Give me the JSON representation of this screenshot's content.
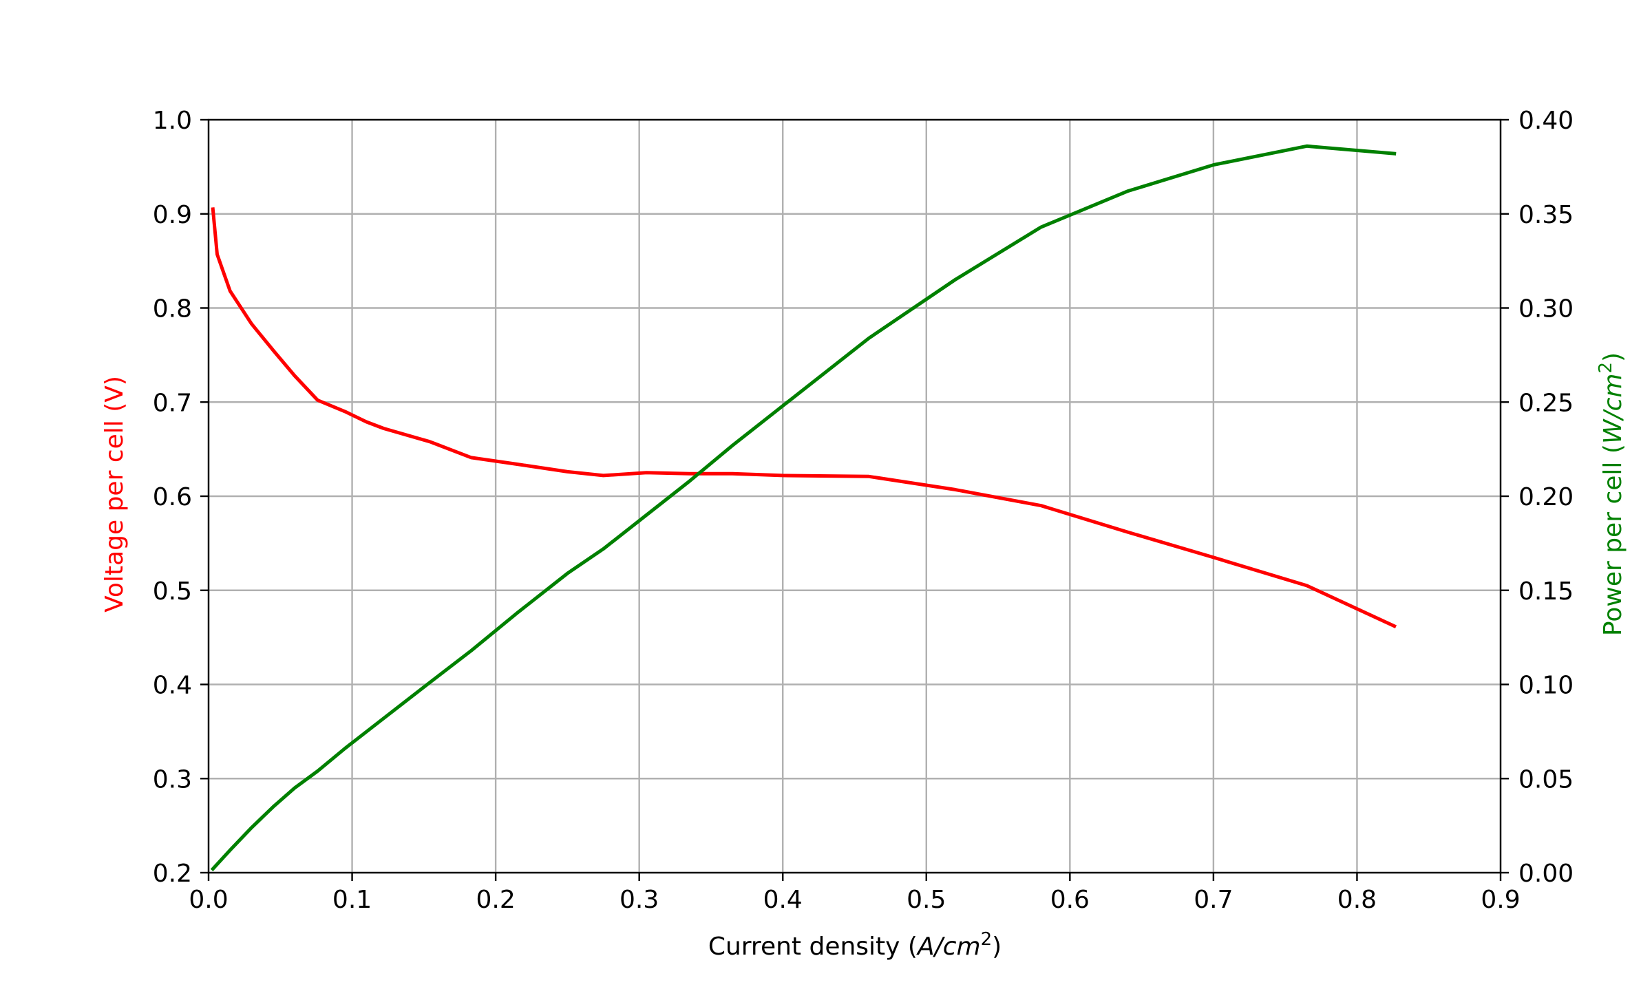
{
  "chart_data": {
    "type": "line",
    "x_axis": {
      "label_text": "Current density (",
      "label_math": "A/cm",
      "label_sup": "2",
      "label_close": ")",
      "range": [
        0.0,
        0.9
      ],
      "ticks": [
        "0.0",
        "0.1",
        "0.2",
        "0.3",
        "0.4",
        "0.5",
        "0.6",
        "0.7",
        "0.8",
        "0.9"
      ]
    },
    "y_axis_left": {
      "label": "Voltage per cell (V)",
      "color": "#ff0000",
      "range": [
        0.2,
        1.0
      ],
      "ticks": [
        "0.2",
        "0.3",
        "0.4",
        "0.5",
        "0.6",
        "0.7",
        "0.8",
        "0.9",
        "1.0"
      ]
    },
    "y_axis_right": {
      "label_text": "Power per cell (",
      "label_math": "W/cm",
      "label_sup": "2",
      "label_close": ")",
      "color": "#008000",
      "range": [
        0.0,
        0.4
      ],
      "ticks": [
        "0.00",
        "0.05",
        "0.10",
        "0.15",
        "0.20",
        "0.25",
        "0.30",
        "0.35",
        "0.40"
      ]
    },
    "grid": true,
    "series": [
      {
        "axis": "left",
        "color": "#ff0000",
        "x": [
          0.003,
          0.006,
          0.015,
          0.03,
          0.045,
          0.06,
          0.076,
          0.095,
          0.11,
          0.122,
          0.154,
          0.183,
          0.215,
          0.25,
          0.275,
          0.305,
          0.335,
          0.365,
          0.4,
          0.46,
          0.52,
          0.58,
          0.64,
          0.7,
          0.765,
          0.826
        ],
        "y": [
          0.905,
          0.857,
          0.818,
          0.783,
          0.755,
          0.728,
          0.702,
          0.69,
          0.679,
          0.672,
          0.658,
          0.641,
          0.634,
          0.626,
          0.622,
          0.625,
          0.624,
          0.624,
          0.622,
          0.621,
          0.607,
          0.59,
          0.562,
          0.535,
          0.505,
          0.462
        ]
      },
      {
        "axis": "right",
        "color": "#008000",
        "x": [
          0.003,
          0.015,
          0.03,
          0.045,
          0.06,
          0.076,
          0.095,
          0.122,
          0.154,
          0.183,
          0.215,
          0.25,
          0.275,
          0.305,
          0.335,
          0.365,
          0.4,
          0.46,
          0.52,
          0.58,
          0.64,
          0.7,
          0.765,
          0.826
        ],
        "y": [
          0.002,
          0.012,
          0.024,
          0.035,
          0.045,
          0.054,
          0.066,
          0.082,
          0.101,
          0.118,
          0.138,
          0.159,
          0.172,
          0.19,
          0.208,
          0.227,
          0.248,
          0.284,
          0.315,
          0.343,
          0.362,
          0.376,
          0.386,
          0.382
        ]
      }
    ]
  }
}
